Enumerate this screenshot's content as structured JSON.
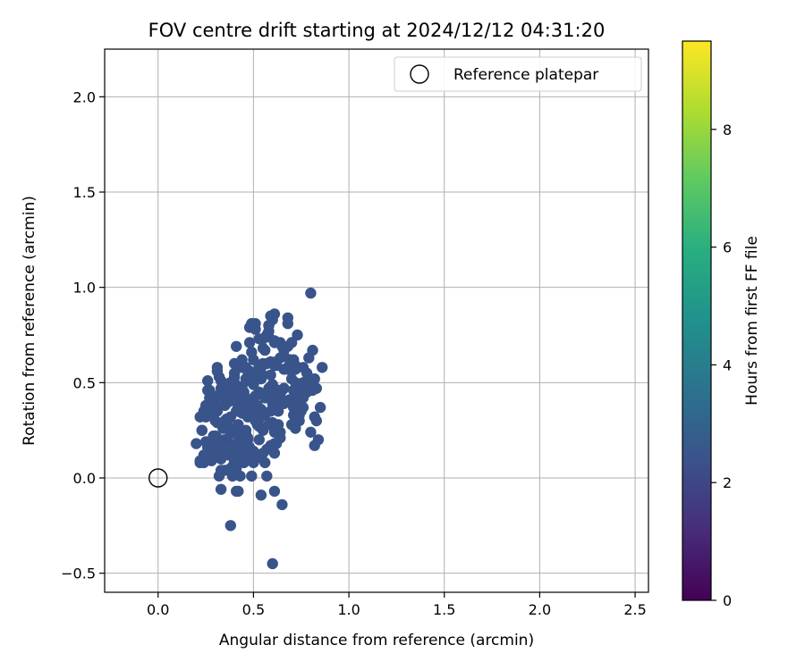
{
  "chart_data": {
    "type": "scatter",
    "title": "FOV centre drift starting at 2024/12/12 04:31:20",
    "xlabel": "Angular distance from reference (arcmin)",
    "ylabel": "Rotation from reference (arcmin)",
    "xlim": [
      -0.28,
      2.57
    ],
    "ylim": [
      -0.6,
      2.25
    ],
    "xticks": [
      0.0,
      0.5,
      1.0,
      1.5,
      2.0,
      2.5
    ],
    "xtick_labels": [
      "0.0",
      "0.5",
      "1.0",
      "1.5",
      "2.0",
      "2.5"
    ],
    "yticks": [
      -0.5,
      0.0,
      0.5,
      1.0,
      1.5,
      2.0
    ],
    "ytick_labels": [
      "−0.5",
      "0.0",
      "0.5",
      "1.0",
      "1.5",
      "2.0"
    ],
    "grid": true,
    "legend": {
      "placement": "top-right",
      "entries": [
        "Reference platepar"
      ]
    },
    "reference_point": {
      "x": 0.0,
      "y": 0.0
    },
    "colorbar": {
      "label": "Hours from first FF file",
      "colormap": "viridis",
      "range": [
        0,
        9.5
      ],
      "ticks": [
        0,
        2,
        4,
        6,
        8
      ],
      "tick_labels": [
        "0",
        "2",
        "4",
        "6",
        "8"
      ]
    },
    "points": [
      [
        0.6,
        -0.45,
        2.5
      ],
      [
        0.6,
        0.83,
        2.5
      ],
      [
        0.78,
        0.45,
        2.5
      ],
      [
        0.4,
        0.6,
        2.5
      ],
      [
        0.8,
        0.97,
        2.5
      ],
      [
        0.58,
        0.8,
        2.5
      ],
      [
        0.35,
        0.2,
        2.5
      ],
      [
        0.35,
        0.3,
        2.5
      ],
      [
        0.45,
        0.45,
        2.5
      ],
      [
        0.52,
        0.12,
        2.5
      ],
      [
        0.68,
        0.58,
        2.5
      ],
      [
        0.5,
        0.37,
        2.5
      ],
      [
        0.35,
        0.2,
        2.5
      ],
      [
        0.63,
        0.28,
        2.5
      ],
      [
        0.5,
        0.14,
        2.5
      ],
      [
        0.53,
        0.27,
        2.5
      ],
      [
        0.65,
        0.46,
        2.5
      ],
      [
        0.7,
        0.28,
        2.5
      ],
      [
        0.76,
        0.37,
        2.5
      ],
      [
        0.42,
        0.37,
        2.5
      ],
      [
        0.57,
        0.6,
        2.5
      ],
      [
        0.4,
        0.53,
        2.5
      ],
      [
        0.48,
        0.54,
        2.5
      ],
      [
        0.58,
        0.28,
        2.5
      ],
      [
        0.51,
        0.1,
        2.5
      ],
      [
        0.83,
        0.47,
        2.5
      ],
      [
        0.31,
        0.35,
        2.5
      ],
      [
        0.45,
        0.36,
        2.5
      ],
      [
        0.31,
        0.21,
        2.5
      ],
      [
        0.82,
        0.52,
        2.5
      ],
      [
        0.26,
        0.33,
        2.5
      ],
      [
        0.46,
        0.1,
        2.5
      ],
      [
        0.31,
        0.43,
        2.5
      ],
      [
        0.61,
        0.24,
        2.5
      ],
      [
        0.56,
        0.42,
        2.5
      ],
      [
        0.27,
        0.46,
        2.5
      ],
      [
        0.33,
        0.45,
        2.5
      ],
      [
        0.46,
        0.52,
        2.5
      ],
      [
        0.48,
        0.15,
        2.5
      ],
      [
        0.33,
        -0.06,
        2.5
      ],
      [
        0.48,
        0.79,
        2.5
      ],
      [
        0.5,
        0.49,
        2.5
      ],
      [
        0.59,
        0.85,
        2.5
      ],
      [
        0.79,
        0.63,
        2.5
      ],
      [
        0.29,
        0.22,
        2.5
      ],
      [
        0.48,
        0.71,
        2.5
      ],
      [
        0.59,
        0.35,
        2.5
      ],
      [
        0.57,
        0.75,
        2.5
      ],
      [
        0.73,
        0.75,
        2.5
      ],
      [
        0.47,
        0.12,
        2.5
      ],
      [
        0.5,
        0.35,
        2.5
      ],
      [
        0.5,
        0.39,
        2.5
      ],
      [
        0.46,
        0.23,
        2.5
      ],
      [
        0.62,
        0.36,
        2.5
      ],
      [
        0.55,
        0.25,
        2.5
      ],
      [
        0.72,
        0.59,
        2.5
      ],
      [
        0.49,
        0.66,
        2.5
      ],
      [
        0.28,
        0.35,
        2.5
      ],
      [
        0.6,
        0.49,
        2.5
      ],
      [
        0.69,
        0.4,
        2.5
      ],
      [
        0.46,
        0.41,
        2.5
      ],
      [
        0.56,
        0.08,
        2.5
      ],
      [
        0.71,
        0.6,
        2.5
      ],
      [
        0.43,
        0.12,
        2.5
      ],
      [
        0.58,
        0.8,
        2.5
      ],
      [
        0.59,
        0.17,
        2.5
      ],
      [
        0.35,
        0.04,
        2.5
      ],
      [
        0.64,
        0.43,
        2.5
      ],
      [
        0.2,
        0.18,
        2.5
      ],
      [
        0.64,
        0.63,
        2.5
      ],
      [
        0.37,
        0.43,
        2.5
      ],
      [
        0.55,
        0.68,
        2.5
      ],
      [
        0.25,
        0.33,
        2.5
      ],
      [
        0.51,
        0.81,
        2.5
      ],
      [
        0.31,
        0.58,
        2.5
      ],
      [
        0.24,
        0.08,
        2.5
      ],
      [
        0.64,
        0.71,
        2.5
      ],
      [
        0.36,
        0.31,
        2.5
      ],
      [
        0.68,
        0.84,
        2.5
      ],
      [
        0.8,
        0.48,
        2.5
      ],
      [
        0.58,
        0.77,
        2.5
      ],
      [
        0.49,
        0.01,
        2.5
      ],
      [
        0.66,
        0.67,
        2.5
      ],
      [
        0.69,
        0.41,
        2.5
      ],
      [
        0.53,
        0.58,
        2.5
      ],
      [
        0.49,
        0.81,
        2.5
      ],
      [
        0.22,
        0.32,
        2.5
      ],
      [
        0.75,
        0.35,
        2.5
      ],
      [
        0.59,
        0.54,
        2.5
      ],
      [
        0.52,
        0.28,
        2.5
      ],
      [
        0.37,
        0.12,
        2.5
      ],
      [
        0.61,
        0.13,
        2.5
      ],
      [
        0.6,
        0.29,
        2.5
      ],
      [
        0.33,
        0.43,
        2.5
      ],
      [
        0.33,
        0.04,
        2.5
      ],
      [
        0.31,
        0.14,
        2.5
      ],
      [
        0.82,
        0.17,
        2.5
      ],
      [
        0.38,
        0.05,
        2.5
      ],
      [
        0.43,
        0.2,
        2.5
      ],
      [
        0.72,
        0.26,
        2.5
      ],
      [
        0.65,
        -0.14,
        2.5
      ],
      [
        0.47,
        0.32,
        2.5
      ],
      [
        0.26,
        0.46,
        2.5
      ],
      [
        0.61,
        -0.07,
        2.5
      ],
      [
        0.47,
        0.21,
        2.5
      ],
      [
        0.4,
        0.09,
        2.5
      ],
      [
        0.41,
        -0.07,
        2.5
      ],
      [
        0.37,
        0.43,
        2.5
      ],
      [
        0.85,
        0.37,
        2.5
      ],
      [
        0.86,
        0.58,
        2.5
      ],
      [
        0.69,
        0.62,
        2.5
      ],
      [
        0.83,
        0.3,
        2.5
      ],
      [
        0.61,
        0.59,
        2.5
      ],
      [
        0.28,
        0.17,
        2.5
      ],
      [
        0.82,
        0.32,
        2.5
      ],
      [
        0.45,
        0.15,
        2.5
      ],
      [
        0.55,
        0.6,
        2.5
      ],
      [
        0.42,
        0.35,
        2.5
      ],
      [
        0.63,
        0.37,
        2.5
      ],
      [
        0.53,
        0.45,
        2.5
      ],
      [
        0.54,
        -0.09,
        2.5
      ],
      [
        0.38,
        0.44,
        2.5
      ],
      [
        0.38,
        0.23,
        2.5
      ],
      [
        0.36,
        0.19,
        2.5
      ],
      [
        0.41,
        0.05,
        2.5
      ],
      [
        0.33,
        0.47,
        2.5
      ],
      [
        0.53,
        0.73,
        2.5
      ],
      [
        0.36,
        0.43,
        2.5
      ],
      [
        0.44,
        0.62,
        2.5
      ],
      [
        0.43,
        0.22,
        2.5
      ],
      [
        0.69,
        0.62,
        2.5
      ],
      [
        0.28,
        0.09,
        2.5
      ],
      [
        0.74,
        0.41,
        2.5
      ],
      [
        0.81,
        0.67,
        2.5
      ],
      [
        0.68,
        0.57,
        2.5
      ],
      [
        0.54,
        0.52,
        2.5
      ],
      [
        0.57,
        0.15,
        2.5
      ],
      [
        0.6,
        0.39,
        2.5
      ],
      [
        0.3,
        0.39,
        2.5
      ],
      [
        0.51,
        0.43,
        2.5
      ],
      [
        0.44,
        0.34,
        2.5
      ],
      [
        0.3,
        0.22,
        2.5
      ],
      [
        0.68,
        0.58,
        2.5
      ],
      [
        0.22,
        0.09,
        2.5
      ],
      [
        0.26,
        0.16,
        2.5
      ],
      [
        0.79,
        0.51,
        2.5
      ],
      [
        0.34,
        0.26,
        2.5
      ],
      [
        0.22,
        0.08,
        2.5
      ],
      [
        0.57,
        0.01,
        2.5
      ],
      [
        0.42,
        0.23,
        2.5
      ],
      [
        0.64,
        0.24,
        2.5
      ],
      [
        0.66,
        0.47,
        2.5
      ],
      [
        0.35,
        0.47,
        2.5
      ],
      [
        0.64,
        0.46,
        2.5
      ],
      [
        0.63,
        0.38,
        2.5
      ],
      [
        0.7,
        0.52,
        2.5
      ],
      [
        0.71,
        0.37,
        2.5
      ],
      [
        0.47,
        0.2,
        2.5
      ],
      [
        0.34,
        0.14,
        2.5
      ],
      [
        0.3,
        0.3,
        2.5
      ],
      [
        0.4,
        0.55,
        2.5
      ],
      [
        0.33,
        0.1,
        2.5
      ],
      [
        0.66,
        0.39,
        2.5
      ],
      [
        0.46,
        0.42,
        2.5
      ],
      [
        0.24,
        0.12,
        2.5
      ],
      [
        0.48,
        0.16,
        2.5
      ],
      [
        0.31,
        0.29,
        2.5
      ],
      [
        0.35,
        0.38,
        2.5
      ],
      [
        0.38,
        0.5,
        2.5
      ],
      [
        0.37,
        0.31,
        2.5
      ],
      [
        0.39,
        0.06,
        2.5
      ],
      [
        0.69,
        0.4,
        2.5
      ],
      [
        0.65,
        0.69,
        2.5
      ],
      [
        0.53,
        0.2,
        2.5
      ],
      [
        0.39,
        0.01,
        2.5
      ],
      [
        0.41,
        0.69,
        2.5
      ],
      [
        0.25,
        0.19,
        2.5
      ],
      [
        0.44,
        0.48,
        2.5
      ],
      [
        0.72,
        0.43,
        2.5
      ],
      [
        0.59,
        0.45,
        2.5
      ],
      [
        0.42,
        0.11,
        2.5
      ],
      [
        0.72,
        0.37,
        2.5
      ],
      [
        0.54,
        0.55,
        2.5
      ],
      [
        0.69,
        0.62,
        2.5
      ],
      [
        0.23,
        0.25,
        2.5
      ],
      [
        0.36,
        0.2,
        2.5
      ],
      [
        0.25,
        0.38,
        2.5
      ],
      [
        0.51,
        0.54,
        2.5
      ],
      [
        0.66,
        0.57,
        2.5
      ],
      [
        0.71,
        0.62,
        2.5
      ],
      [
        0.32,
        0.18,
        2.5
      ],
      [
        0.72,
        0.5,
        2.5
      ],
      [
        0.42,
        0.38,
        2.5
      ],
      [
        0.27,
        0.16,
        2.5
      ],
      [
        0.76,
        0.5,
        2.5
      ],
      [
        0.38,
        0.32,
        2.5
      ],
      [
        0.62,
        0.38,
        2.5
      ],
      [
        0.68,
        0.81,
        2.5
      ],
      [
        0.74,
        0.3,
        2.5
      ],
      [
        0.56,
        0.67,
        2.5
      ],
      [
        0.43,
        0.45,
        2.5
      ],
      [
        0.59,
        0.46,
        2.5
      ],
      [
        0.32,
        0.53,
        2.5
      ],
      [
        0.81,
        0.46,
        2.5
      ],
      [
        0.33,
        0.51,
        2.5
      ],
      [
        0.31,
        0.13,
        2.5
      ],
      [
        0.48,
        0.51,
        2.5
      ],
      [
        0.76,
        0.42,
        2.5
      ],
      [
        0.59,
        0.61,
        2.5
      ],
      [
        0.76,
        0.58,
        2.5
      ],
      [
        0.52,
        0.38,
        2.5
      ],
      [
        0.37,
        0.4,
        2.5
      ],
      [
        0.8,
        0.24,
        2.5
      ],
      [
        0.5,
        0.08,
        2.5
      ],
      [
        0.71,
        0.46,
        2.5
      ],
      [
        0.62,
        0.18,
        2.5
      ],
      [
        0.4,
        0.5,
        2.5
      ],
      [
        0.7,
        0.71,
        2.5
      ],
      [
        0.74,
        0.33,
        2.5
      ],
      [
        0.54,
        0.58,
        2.5
      ],
      [
        0.61,
        0.42,
        2.5
      ],
      [
        0.31,
        0.56,
        2.5
      ],
      [
        0.62,
        0.59,
        2.5
      ],
      [
        0.3,
        0.22,
        2.5
      ],
      [
        0.44,
        0.58,
        2.5
      ],
      [
        0.41,
        0.47,
        2.5
      ],
      [
        0.3,
        0.42,
        2.5
      ],
      [
        0.42,
        0.28,
        2.5
      ],
      [
        0.41,
        0.35,
        2.5
      ],
      [
        0.61,
        0.47,
        2.5
      ],
      [
        0.71,
        0.33,
        2.5
      ],
      [
        0.32,
        0.01,
        2.5
      ],
      [
        0.61,
        0.71,
        2.5
      ],
      [
        0.42,
        0.46,
        2.5
      ],
      [
        0.42,
        -0.07,
        2.5
      ],
      [
        0.38,
        0.5,
        2.5
      ],
      [
        0.43,
        0.01,
        2.5
      ],
      [
        0.38,
        -0.25,
        2.5
      ],
      [
        0.58,
        0.74,
        2.5
      ],
      [
        0.28,
        0.12,
        2.5
      ],
      [
        0.55,
        0.13,
        2.5
      ],
      [
        0.27,
        0.42,
        2.5
      ],
      [
        0.34,
        0.29,
        2.5
      ],
      [
        0.43,
        0.39,
        2.5
      ],
      [
        0.64,
        0.21,
        2.5
      ],
      [
        0.63,
        0.35,
        2.5
      ],
      [
        0.3,
        0.11,
        2.5
      ],
      [
        0.41,
        0.18,
        2.5
      ],
      [
        0.51,
        0.3,
        2.5
      ],
      [
        0.31,
        0.37,
        2.5
      ],
      [
        0.46,
        0.25,
        2.5
      ],
      [
        0.45,
        0.38,
        2.5
      ],
      [
        0.39,
        0.15,
        2.5
      ],
      [
        0.4,
        0.15,
        2.5
      ],
      [
        0.84,
        0.2,
        2.5
      ],
      [
        0.45,
        0.08,
        2.5
      ],
      [
        0.23,
        0.25,
        2.5
      ],
      [
        0.61,
        0.18,
        2.5
      ],
      [
        0.54,
        0.36,
        2.5
      ],
      [
        0.37,
        0.47,
        2.5
      ],
      [
        0.55,
        0.73,
        2.5
      ],
      [
        0.47,
        0.56,
        2.5
      ],
      [
        0.72,
        0.57,
        2.5
      ],
      [
        0.53,
        0.31,
        2.5
      ],
      [
        0.26,
        0.12,
        2.5
      ],
      [
        0.45,
        0.43,
        2.5
      ],
      [
        0.5,
        0.62,
        2.5
      ],
      [
        0.75,
        0.46,
        2.5
      ],
      [
        0.61,
        0.72,
        2.5
      ],
      [
        0.68,
        0.69,
        2.5
      ],
      [
        0.24,
        0.35,
        2.5
      ],
      [
        0.46,
        0.58,
        2.5
      ],
      [
        0.29,
        0.12,
        2.5
      ],
      [
        0.38,
        0.26,
        2.5
      ],
      [
        0.51,
        0.78,
        2.5
      ],
      [
        0.62,
        0.61,
        2.5
      ],
      [
        0.42,
        0.37,
        2.5
      ],
      [
        0.56,
        0.33,
        2.5
      ],
      [
        0.3,
        0.19,
        2.5
      ],
      [
        0.25,
        0.32,
        2.5
      ],
      [
        0.58,
        0.47,
        2.5
      ],
      [
        0.61,
        0.86,
        2.5
      ],
      [
        0.26,
        0.51,
        2.5
      ],
      [
        0.5,
        0.39,
        2.5
      ],
      [
        0.78,
        0.55,
        2.5
      ],
      [
        0.4,
        0.43,
        2.5
      ],
      [
        0.66,
        0.64,
        2.5
      ],
      [
        0.51,
        0.31,
        2.5
      ],
      [
        0.48,
        0.56,
        2.5
      ],
      [
        0.54,
        0.55,
        2.5
      ]
    ]
  }
}
